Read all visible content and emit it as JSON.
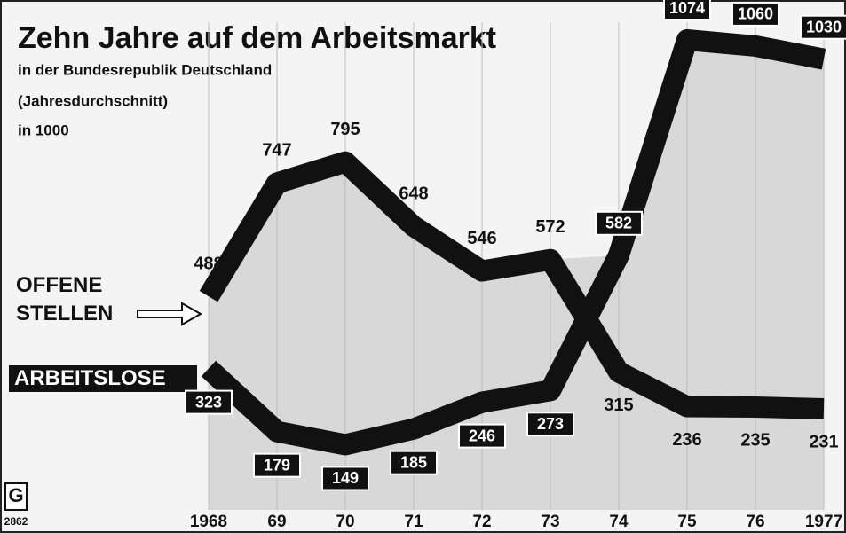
{
  "chart_data": {
    "type": "line",
    "title": "Zehn Jahre auf dem Arbeitsmarkt",
    "subtitle": [
      "in der Bundesrepublik Deutschland",
      "(Jahresdurchschnitt)",
      "in 1000"
    ],
    "categories": [
      "1968",
      "69",
      "70",
      "71",
      "72",
      "73",
      "74",
      "75",
      "76",
      "1977"
    ],
    "series": [
      {
        "name": "OFFENE STELLEN",
        "color": "#111111",
        "values": [
          488,
          747,
          795,
          648,
          546,
          572,
          315,
          236,
          235,
          231
        ]
      },
      {
        "name": "ARBEITSLOSE",
        "color": "#111111",
        "values": [
          323,
          179,
          149,
          185,
          246,
          273,
          582,
          1074,
          1060,
          1030
        ]
      }
    ],
    "logo": "G",
    "code": "2862"
  }
}
